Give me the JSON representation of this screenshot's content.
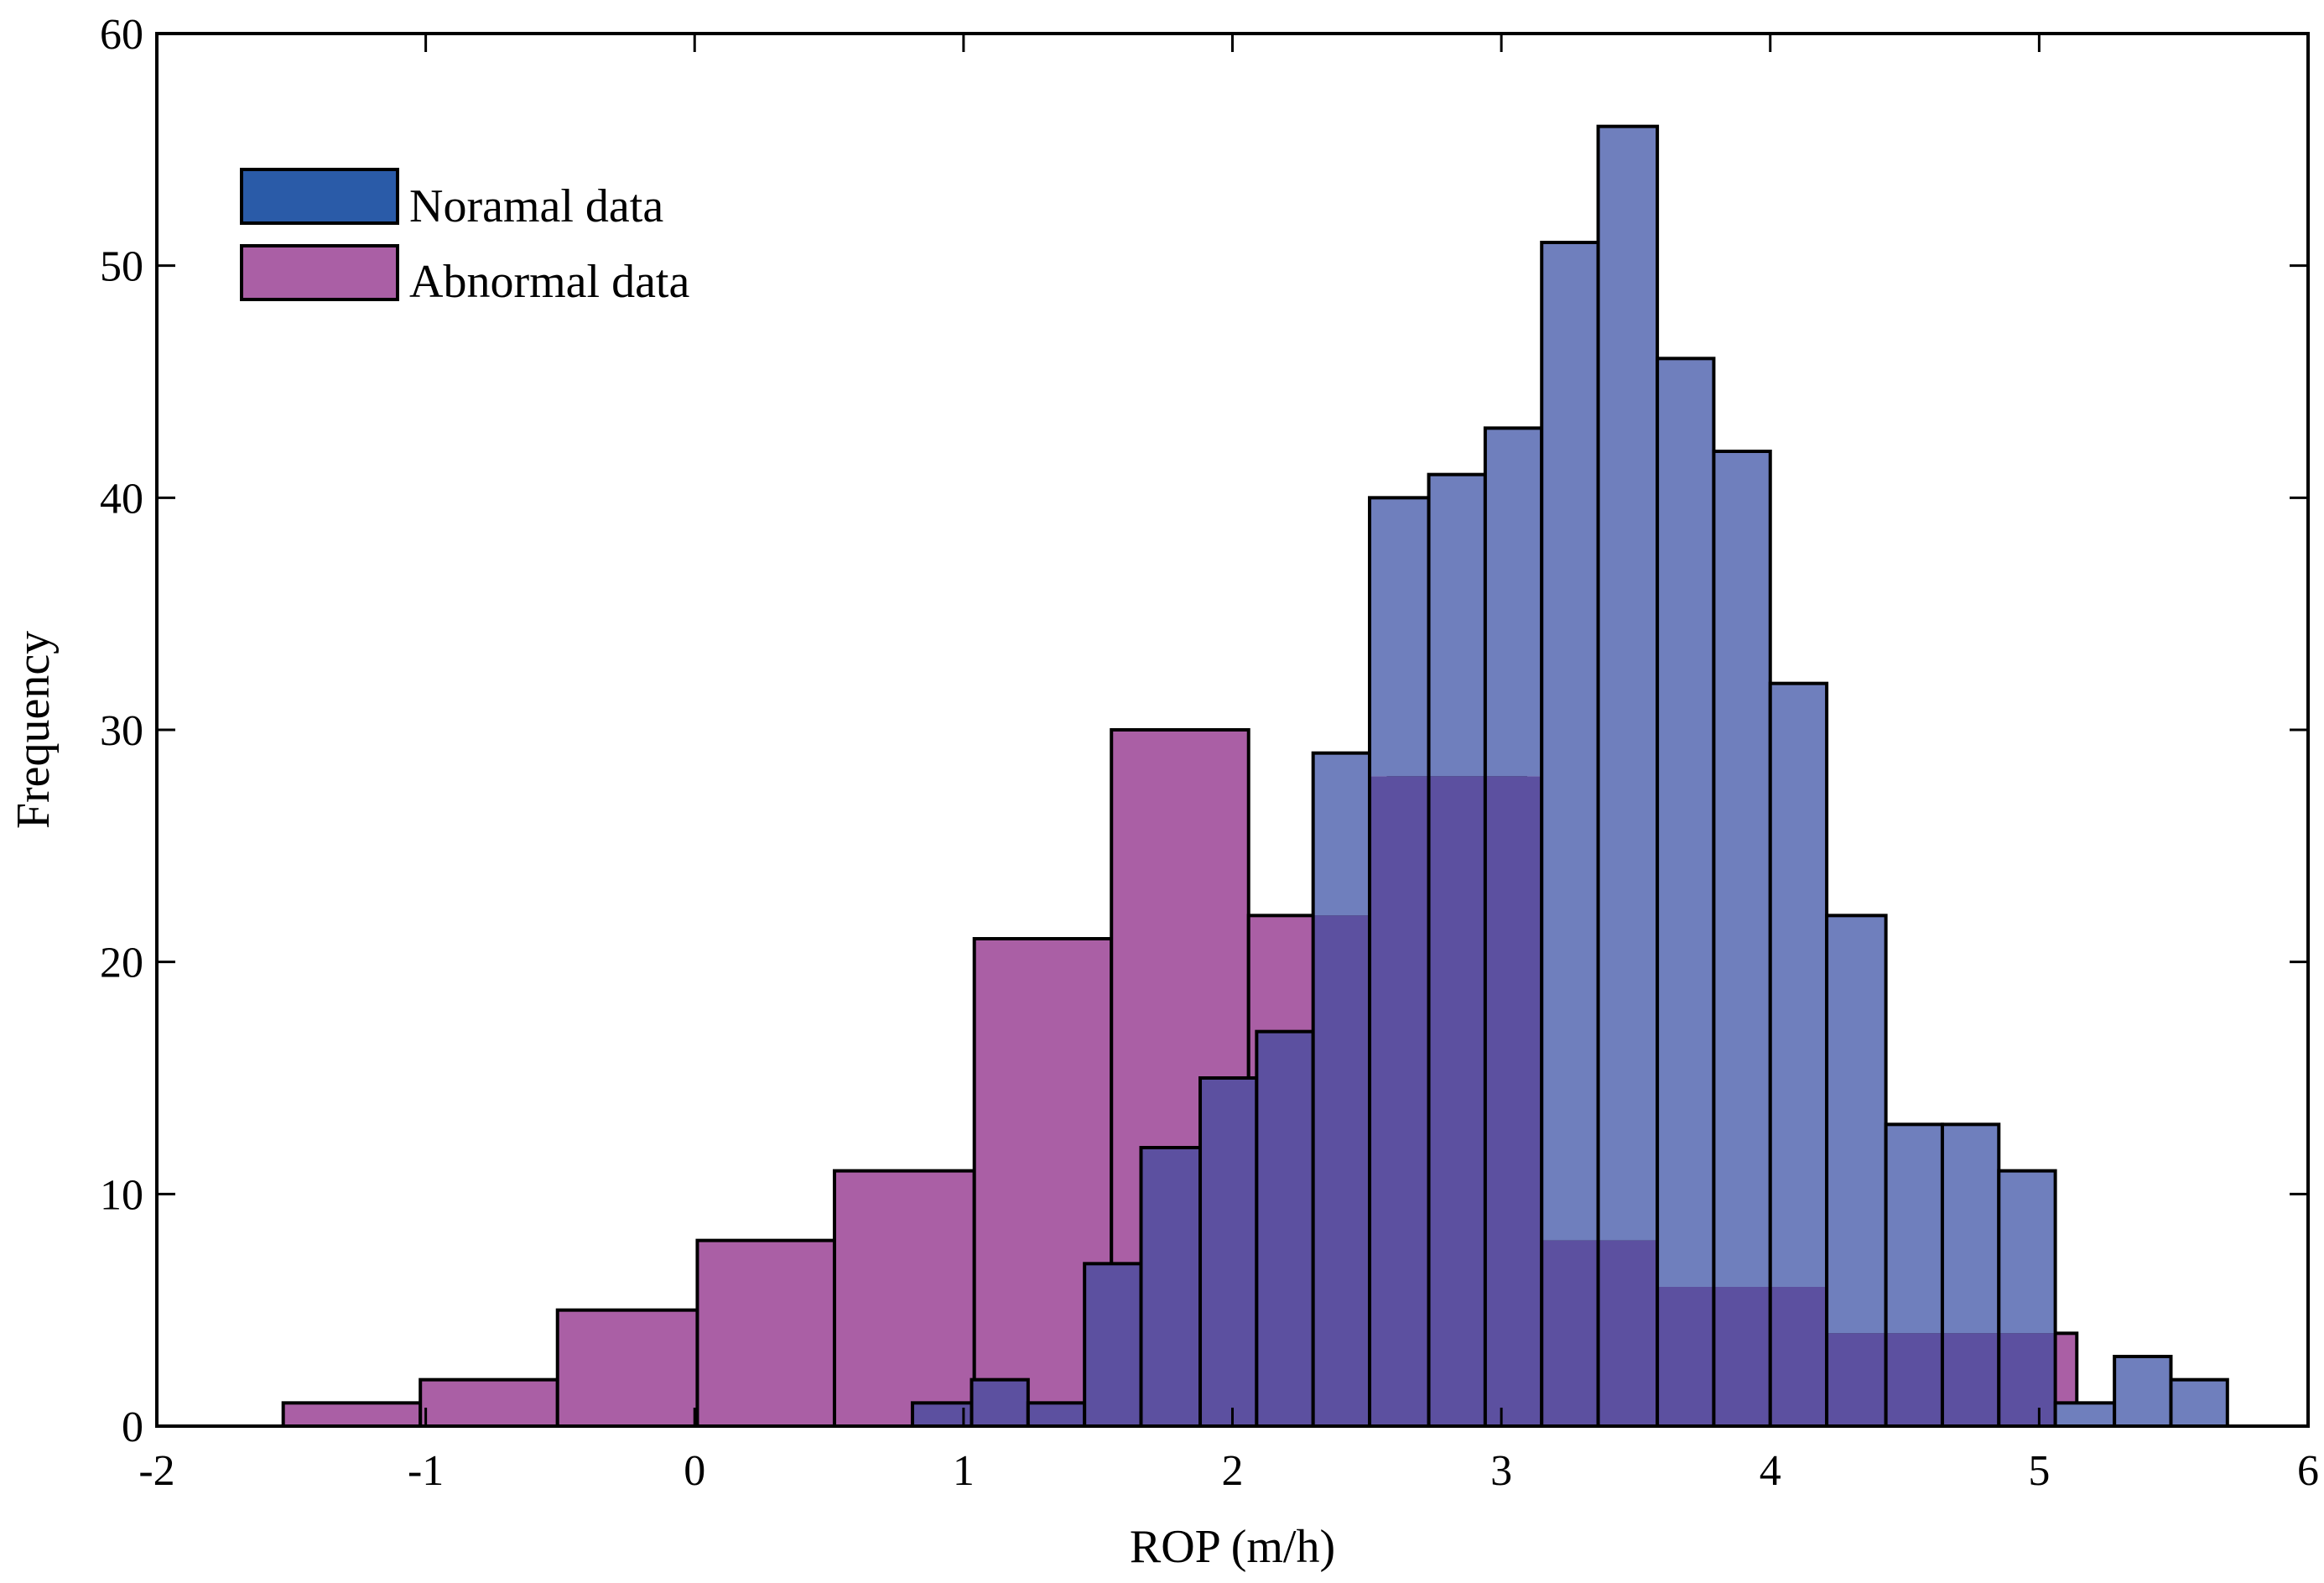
{
  "chart_data": {
    "type": "bar",
    "xlabel": "ROP (m/h)",
    "ylabel": "Frequency",
    "xlim": [
      -2,
      6
    ],
    "ylim": [
      0,
      60
    ],
    "x_ticks": [
      "-2",
      "-1",
      "0",
      "1",
      "2",
      "3",
      "4",
      "5",
      "6"
    ],
    "y_ticks": [
      "0",
      "10",
      "20",
      "30",
      "40",
      "50",
      "60"
    ],
    "grid": false,
    "legend_position": "top-left",
    "series": [
      {
        "name": "Abnormal data",
        "color": "#aa5fa5",
        "bins": [
          {
            "x0": -1.53,
            "x1": -1.02,
            "count": 1
          },
          {
            "x0": -1.02,
            "x1": -0.51,
            "count": 2
          },
          {
            "x0": -0.51,
            "x1": 0.01,
            "count": 5
          },
          {
            "x0": 0.01,
            "x1": 0.52,
            "count": 8
          },
          {
            "x0": 0.52,
            "x1": 1.04,
            "count": 11
          },
          {
            "x0": 1.04,
            "x1": 1.55,
            "count": 21
          },
          {
            "x0": 1.55,
            "x1": 2.06,
            "count": 30
          },
          {
            "x0": 2.06,
            "x1": 2.58,
            "count": 22
          },
          {
            "x0": 2.58,
            "x1": 3.09,
            "count": 28
          },
          {
            "x0": 3.09,
            "x1": 3.6,
            "count": 8
          },
          {
            "x0": 3.6,
            "x1": 4.12,
            "count": 6
          },
          {
            "x0": 4.12,
            "x1": 4.63,
            "count": 4
          },
          {
            "x0": 4.63,
            "x1": 5.14,
            "count": 4
          }
        ]
      },
      {
        "name": "Noramal data",
        "color": "#6f7fbd",
        "overlap_color": "#5c50a0",
        "legend_color": "#2a5ba8",
        "bins": [
          {
            "x0": 0.81,
            "x1": 1.03,
            "count": 1
          },
          {
            "x0": 1.03,
            "x1": 1.24,
            "count": 2
          },
          {
            "x0": 1.24,
            "x1": 1.45,
            "count": 1
          },
          {
            "x0": 1.45,
            "x1": 1.66,
            "count": 7
          },
          {
            "x0": 1.66,
            "x1": 1.88,
            "count": 12
          },
          {
            "x0": 1.88,
            "x1": 2.09,
            "count": 15
          },
          {
            "x0": 2.09,
            "x1": 2.3,
            "count": 17
          },
          {
            "x0": 2.3,
            "x1": 2.51,
            "count": 29
          },
          {
            "x0": 2.51,
            "x1": 2.73,
            "count": 40
          },
          {
            "x0": 2.73,
            "x1": 2.94,
            "count": 41
          },
          {
            "x0": 2.94,
            "x1": 3.15,
            "count": 43
          },
          {
            "x0": 3.15,
            "x1": 3.36,
            "count": 51
          },
          {
            "x0": 3.36,
            "x1": 3.58,
            "count": 56
          },
          {
            "x0": 3.58,
            "x1": 3.79,
            "count": 46
          },
          {
            "x0": 3.79,
            "x1": 4.0,
            "count": 42
          },
          {
            "x0": 4.0,
            "x1": 4.21,
            "count": 32
          },
          {
            "x0": 4.21,
            "x1": 4.43,
            "count": 22
          },
          {
            "x0": 4.43,
            "x1": 4.64,
            "count": 13
          },
          {
            "x0": 4.64,
            "x1": 4.85,
            "count": 13
          },
          {
            "x0": 4.85,
            "x1": 5.06,
            "count": 11
          },
          {
            "x0": 5.06,
            "x1": 5.28,
            "count": 1
          },
          {
            "x0": 5.28,
            "x1": 5.49,
            "count": 3
          },
          {
            "x0": 5.49,
            "x1": 5.7,
            "count": 2
          }
        ]
      }
    ]
  }
}
